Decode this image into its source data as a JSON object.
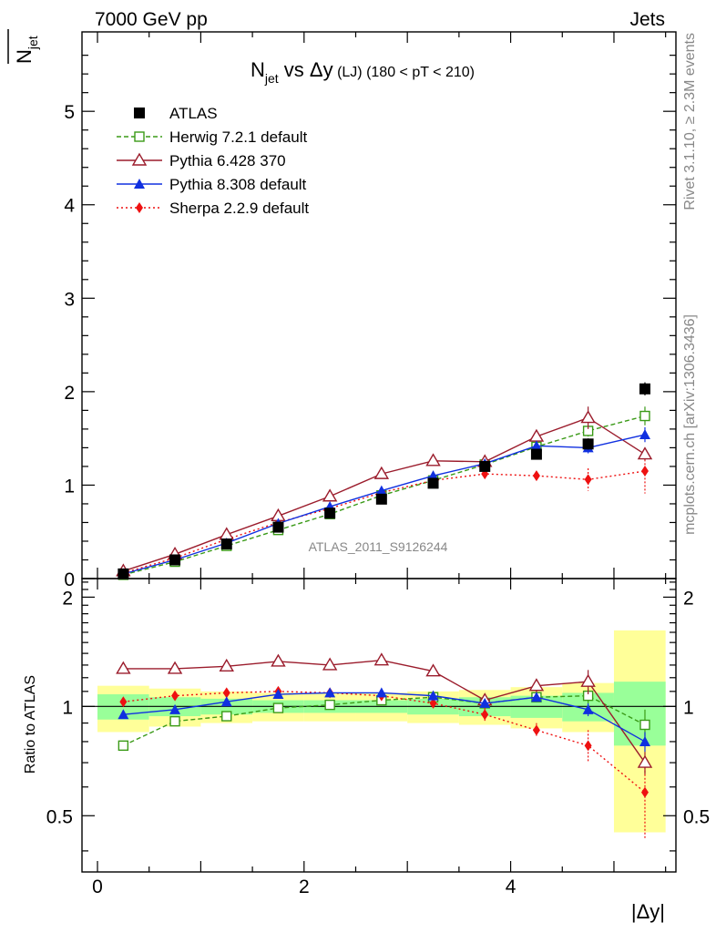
{
  "header": {
    "left_label": "7000 GeV pp",
    "right_label": "Jets"
  },
  "side_labels": {
    "rivet": "Rivet 3.1.10, ≥ 2.3M events",
    "mcplots": "mcplots.cern.ch [arXiv:1306.3436]"
  },
  "watermark": "ATLAS_2011_S9126244",
  "colors": {
    "atlas": "#000000",
    "herwig": "#3a9a17",
    "pythia6": "#9b1c2c",
    "pythia8": "#1030e0",
    "sherpa": "#ee1111",
    "band_inner": "#99ff99",
    "band_outer": "#ffff99"
  },
  "chart_data": [
    {
      "type": "scatter",
      "panel": "main",
      "title": "N_jet vs Δy (LJ) (180 < pT < 210)",
      "title_parts": {
        "n": "N",
        "jet": "jet",
        "vs": " vs ",
        "dy": "Δy",
        "lj": " (LJ)",
        "cut": " (180 < pT < 210)"
      },
      "ylabel": "N_jet (mean)",
      "ylabel_parts": {
        "n": "N",
        "jet": "jet"
      },
      "xlim": [
        -0.15,
        5.6
      ],
      "ylim": [
        0,
        5.85
      ],
      "yticks": [
        0,
        1,
        2,
        3,
        4,
        5
      ],
      "xticks": [
        0,
        2,
        4
      ],
      "x": [
        0.25,
        0.75,
        1.25,
        1.75,
        2.25,
        2.75,
        3.25,
        3.75,
        4.25,
        4.75,
        5.3
      ],
      "legend_position": "top-left",
      "series": [
        {
          "name": "ATLAS",
          "key": "atlas",
          "marker": "square-filled",
          "values": [
            0.05,
            0.2,
            0.37,
            0.55,
            0.7,
            0.85,
            1.02,
            1.2,
            1.33,
            1.44,
            2.03
          ],
          "errors": [
            0.01,
            0.01,
            0.02,
            0.02,
            0.02,
            0.02,
            0.03,
            0.04,
            0.05,
            0.06,
            0.07
          ]
        },
        {
          "name": "Herwig 7.2.1 default",
          "key": "herwig",
          "marker": "square-open",
          "line": "dashed",
          "values": [
            0.04,
            0.18,
            0.35,
            0.52,
            0.69,
            0.89,
            1.05,
            1.22,
            1.41,
            1.58,
            1.74
          ],
          "errors": [
            0.01,
            0.01,
            0.01,
            0.01,
            0.02,
            0.02,
            0.03,
            0.04,
            0.05,
            0.06,
            0.1
          ]
        },
        {
          "name": "Pythia 6.428 370",
          "key": "pythia6",
          "marker": "triangle-open",
          "line": "solid",
          "values": [
            0.08,
            0.26,
            0.47,
            0.67,
            0.88,
            1.12,
            1.26,
            1.25,
            1.52,
            1.72,
            1.33
          ],
          "errors": [
            0.01,
            0.01,
            0.01,
            0.02,
            0.02,
            0.03,
            0.04,
            0.04,
            0.07,
            0.12,
            0.06
          ]
        },
        {
          "name": "Pythia 8.308 default",
          "key": "pythia8",
          "marker": "triangle-filled",
          "line": "solid",
          "values": [
            0.05,
            0.2,
            0.38,
            0.59,
            0.77,
            0.94,
            1.1,
            1.23,
            1.42,
            1.4,
            1.54
          ],
          "errors": [
            0.01,
            0.01,
            0.01,
            0.01,
            0.02,
            0.02,
            0.03,
            0.04,
            0.05,
            0.06,
            0.08
          ]
        },
        {
          "name": "Sherpa 2.2.9 default",
          "key": "sherpa",
          "marker": "diamond-filled",
          "line": "dotted",
          "values": [
            0.06,
            0.22,
            0.42,
            0.6,
            0.75,
            0.92,
            1.05,
            1.12,
            1.1,
            1.06,
            1.15
          ],
          "errors": [
            0.01,
            0.01,
            0.02,
            0.02,
            0.02,
            0.03,
            0.03,
            0.05,
            0.05,
            0.12,
            0.24
          ]
        }
      ]
    },
    {
      "type": "scatter",
      "panel": "ratio",
      "ylabel": "Ratio to ATLAS",
      "xlabel": "|Δy|",
      "xlim": [
        -0.15,
        5.6
      ],
      "ylim": [
        0.35,
        2.25
      ],
      "yticks": [
        0.5,
        1,
        2
      ],
      "ytick_labels": [
        "0.5",
        "1",
        "2"
      ],
      "xticks": [
        0,
        2,
        4
      ],
      "xtick_labels": [
        "0",
        "2",
        "4"
      ],
      "bins": [
        [
          0,
          0.5
        ],
        [
          0.5,
          1.0
        ],
        [
          1.0,
          1.5
        ],
        [
          1.5,
          2.0
        ],
        [
          2.0,
          2.5
        ],
        [
          2.5,
          3.0
        ],
        [
          3.0,
          3.5
        ],
        [
          3.5,
          4.0
        ],
        [
          4.0,
          4.5
        ],
        [
          4.5,
          5.0
        ],
        [
          5.0,
          5.5
        ]
      ],
      "band_inner": [
        [
          0.92,
          1.08
        ],
        [
          0.94,
          1.06
        ],
        [
          0.95,
          1.05
        ],
        [
          0.96,
          1.04
        ],
        [
          0.96,
          1.04
        ],
        [
          0.96,
          1.04
        ],
        [
          0.95,
          1.05
        ],
        [
          0.94,
          1.06
        ],
        [
          0.93,
          1.07
        ],
        [
          0.91,
          1.09
        ],
        [
          0.78,
          1.17
        ]
      ],
      "band_outer": [
        [
          0.85,
          1.14
        ],
        [
          0.88,
          1.12
        ],
        [
          0.9,
          1.1
        ],
        [
          0.91,
          1.09
        ],
        [
          0.91,
          1.09
        ],
        [
          0.91,
          1.09
        ],
        [
          0.9,
          1.1
        ],
        [
          0.89,
          1.11
        ],
        [
          0.87,
          1.13
        ],
        [
          0.85,
          1.16
        ],
        [
          0.45,
          1.62
        ]
      ],
      "x": [
        0.25,
        0.75,
        1.25,
        1.75,
        2.25,
        2.75,
        3.25,
        3.75,
        4.25,
        4.75,
        5.3
      ],
      "series": [
        {
          "key": "herwig",
          "marker": "square-open",
          "line": "dashed",
          "values": [
            0.78,
            0.91,
            0.94,
            0.99,
            1.01,
            1.04,
            1.06,
            1.02,
            1.06,
            1.07,
            0.89
          ],
          "errors": [
            0.02,
            0.01,
            0.01,
            0.01,
            0.01,
            0.02,
            0.02,
            0.02,
            0.03,
            0.05,
            0.09
          ]
        },
        {
          "key": "pythia6",
          "marker": "triangle-open",
          "line": "solid",
          "values": [
            1.27,
            1.27,
            1.29,
            1.33,
            1.3,
            1.34,
            1.25,
            1.04,
            1.14,
            1.17,
            0.7
          ],
          "errors": [
            0.03,
            0.02,
            0.02,
            0.02,
            0.02,
            0.02,
            0.02,
            0.03,
            0.05,
            0.09,
            0.05
          ]
        },
        {
          "key": "pythia8",
          "marker": "triangle-filled",
          "line": "solid",
          "values": [
            0.95,
            0.98,
            1.03,
            1.08,
            1.09,
            1.09,
            1.07,
            1.02,
            1.06,
            0.98,
            0.8
          ],
          "errors": [
            0.02,
            0.01,
            0.01,
            0.01,
            0.01,
            0.02,
            0.02,
            0.02,
            0.03,
            0.04,
            0.05
          ]
        },
        {
          "key": "sherpa",
          "marker": "diamond-filled",
          "line": "dotted",
          "values": [
            1.03,
            1.07,
            1.09,
            1.1,
            1.09,
            1.07,
            1.02,
            0.95,
            0.86,
            0.78,
            0.58
          ],
          "errors": [
            0.02,
            0.02,
            0.02,
            0.02,
            0.02,
            0.02,
            0.03,
            0.04,
            0.04,
            0.08,
            0.15
          ]
        }
      ]
    }
  ]
}
